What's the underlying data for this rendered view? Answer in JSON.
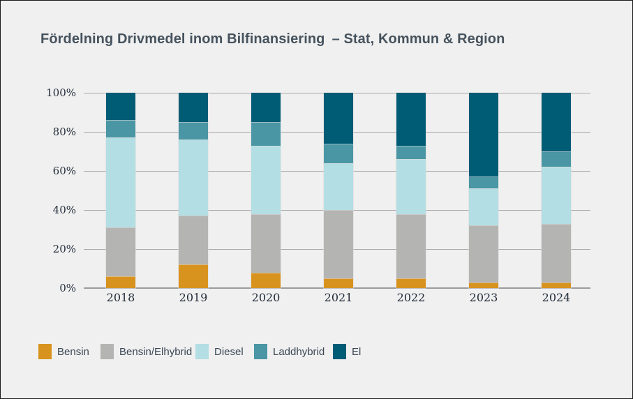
{
  "page": {
    "title": "Fördelning Drivmedel inom Bilfinansiering – Stat, Kommun & Region"
  },
  "colors": {
    "background": "#F0F0F0",
    "page_border": "#1A1A1A",
    "gridline": "#A8A8A8",
    "axis_baseline": "#9B9B9B",
    "title_text": "#46535E",
    "tick_text": "#222C3A",
    "legend_text": "#3A4754"
  },
  "chart_data": {
    "type": "bar",
    "stacked": true,
    "unit": "percent",
    "title": "Fördelning Drivmedel inom Bilfinansiering – Stat, Kommun & Region",
    "categories": [
      "2018",
      "2019",
      "2020",
      "2021",
      "2022",
      "2023",
      "2024"
    ],
    "series": [
      {
        "name": "Bensin",
        "color": "#D8931F",
        "values": [
          6,
          12,
          8,
          5,
          5,
          3,
          3
        ]
      },
      {
        "name": "Bensin/Elhybrid",
        "color": "#B4B4B3",
        "values": [
          25,
          25,
          30,
          35,
          33,
          29,
          30
        ]
      },
      {
        "name": "Diesel",
        "color": "#B3DEE3",
        "values": [
          46,
          39,
          35,
          24,
          28,
          19,
          29
        ]
      },
      {
        "name": "Laddhybrid",
        "color": "#4A96A4",
        "values": [
          9,
          9,
          12,
          10,
          7,
          6,
          8
        ]
      },
      {
        "name": "El",
        "color": "#005C75",
        "values": [
          14,
          15,
          15,
          26,
          27,
          43,
          30
        ]
      }
    ],
    "ylim": [
      0,
      100
    ],
    "yticks": [
      "0%",
      "20%",
      "40%",
      "60%",
      "80%",
      "100%"
    ],
    "grid": true,
    "legend_position": "bottom",
    "legend": [
      "Bensin",
      "Bensin/Elhybrid",
      "Diesel",
      "Laddhybrid",
      "El"
    ]
  }
}
